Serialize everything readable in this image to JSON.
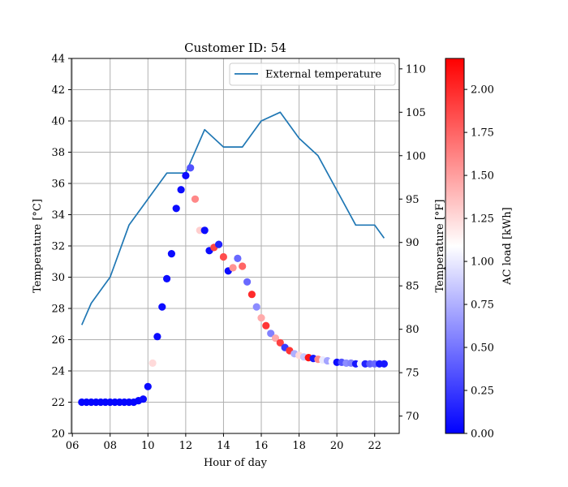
{
  "chart_data": {
    "type": "scatter",
    "title": "Customer ID: 54",
    "xlabel": "Hour of day",
    "ylabel_left": "Temperature [°C]",
    "ylabel_right": "Temperature [°F]",
    "colorbar_label": "AC load [kWh]",
    "xlim": [
      5.95,
      23.3
    ],
    "ylim_left": [
      20,
      44
    ],
    "ylim_right": [
      68,
      111.2
    ],
    "grid": true,
    "legend_position": "top-right",
    "x_ticks": [
      6,
      8,
      10,
      12,
      14,
      16,
      18,
      20,
      22
    ],
    "x_tick_labels": [
      "06",
      "08",
      "10",
      "12",
      "14",
      "16",
      "18",
      "20",
      "22"
    ],
    "y_ticks_left": [
      20,
      22,
      24,
      26,
      28,
      30,
      32,
      34,
      36,
      38,
      40,
      42,
      44
    ],
    "y_tick_labels_left": [
      "20",
      "22",
      "24",
      "26",
      "28",
      "30",
      "32",
      "34",
      "36",
      "38",
      "40",
      "42",
      "44"
    ],
    "y_ticks_right": [
      70,
      75,
      80,
      85,
      90,
      95,
      100,
      105,
      110
    ],
    "y_tick_labels_right": [
      "70",
      "75",
      "80",
      "85",
      "90",
      "95",
      "100",
      "105",
      "110"
    ],
    "colorbar": {
      "range": [
        0,
        2.18
      ],
      "ticks": [
        0,
        0.25,
        0.5,
        0.75,
        1.0,
        1.25,
        1.5,
        1.75,
        2.0
      ],
      "tick_labels": [
        "0.00",
        "0.25",
        "0.50",
        "0.75",
        "1.00",
        "1.25",
        "1.50",
        "1.75",
        "2.00"
      ],
      "colormap": "bwr",
      "colors": {
        "low": "#0000ff",
        "mid": "#ffffff",
        "high": "#ff0000"
      }
    },
    "line_series": {
      "name": "External temperature",
      "color": "#1f77b4",
      "axis": "right",
      "x": [
        6.5,
        7,
        8,
        9,
        10,
        11,
        12,
        13,
        14,
        15,
        16,
        17,
        18,
        19,
        20,
        21,
        22,
        22.5
      ],
      "y": [
        80.5,
        83,
        86,
        92,
        95,
        98,
        98,
        103,
        101,
        101,
        104,
        105,
        102,
        100,
        96,
        92,
        92,
        90.5
      ]
    },
    "scatter_series": {
      "axis": "left",
      "x": [
        6.5,
        6.75,
        7,
        7.25,
        7.5,
        7.75,
        8,
        8.25,
        8.5,
        8.75,
        9,
        9.25,
        9.5,
        9.75,
        10,
        10.25,
        10.5,
        10.75,
        11,
        11.25,
        11.5,
        11.75,
        12,
        12.25,
        12.5,
        12.75,
        13,
        13.25,
        13.5,
        13.75,
        14,
        14.25,
        14.5,
        14.75,
        15,
        15.25,
        15.5,
        15.75,
        16,
        16.25,
        16.5,
        16.75,
        17,
        17.25,
        17.5,
        17.75,
        18,
        18.25,
        18.5,
        18.75,
        19,
        19.25,
        19.5,
        19.75,
        20,
        20.25,
        20.5,
        20.75,
        21,
        21.25,
        21.5,
        21.75,
        22,
        22.25,
        22.5
      ],
      "y": [
        22,
        22,
        22,
        22,
        22,
        22,
        22,
        22,
        22,
        22,
        22,
        22,
        22.1,
        22.2,
        23.0,
        24.5,
        26.2,
        28.1,
        29.9,
        31.5,
        34.4,
        35.6,
        36.5,
        37.0,
        35.0,
        33.0,
        33.0,
        31.7,
        31.9,
        32.1,
        31.3,
        30.4,
        30.6,
        31.2,
        30.7,
        29.7,
        28.9,
        28.1,
        27.4,
        26.9,
        26.4,
        26.1,
        25.8,
        25.5,
        25.3,
        25.1,
        25.0,
        24.9,
        24.85,
        24.8,
        24.75,
        24.7,
        24.65,
        24.6,
        24.55,
        24.55,
        24.5,
        24.5,
        24.45,
        24.45,
        24.45,
        24.45,
        24.45,
        24.45,
        24.45
      ],
      "c": [
        0.02,
        0.02,
        0.02,
        0.02,
        0.02,
        0.02,
        0.02,
        0.02,
        0.02,
        0.02,
        0.02,
        0.02,
        0.02,
        0.05,
        0.05,
        1.25,
        0.05,
        0.05,
        0.05,
        0.05,
        0.05,
        0.05,
        0.05,
        0.35,
        1.6,
        1.3,
        0.05,
        0.05,
        1.9,
        0.15,
        1.85,
        0.05,
        1.55,
        0.45,
        1.75,
        0.45,
        2.0,
        0.6,
        1.45,
        1.95,
        0.55,
        1.45,
        1.9,
        0.25,
        1.95,
        0.75,
        1.25,
        0.85,
        2.1,
        0.1,
        1.6,
        1.0,
        0.7,
        1.1,
        0.05,
        0.35,
        0.6,
        0.55,
        0.1,
        1.05,
        0.15,
        0.4,
        0.45,
        0.1,
        0.1
      ]
    }
  }
}
